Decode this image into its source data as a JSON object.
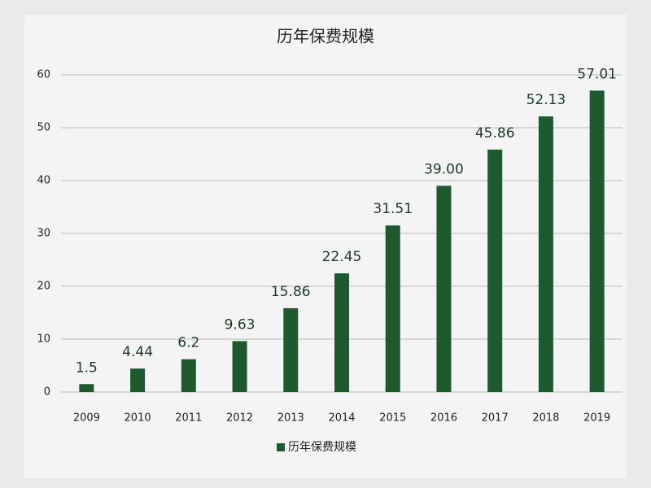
{
  "chart_data": {
    "type": "bar",
    "title": "历年保费规模",
    "categories": [
      "2009",
      "2010",
      "2011",
      "2012",
      "2013",
      "2014",
      "2015",
      "2016",
      "2017",
      "2018",
      "2019"
    ],
    "series": [
      {
        "name": "历年保费规模",
        "color": "#1d5a30",
        "values": [
          1.5,
          4.44,
          6.2,
          9.63,
          15.86,
          22.45,
          31.51,
          39.0,
          45.86,
          52.13,
          57.01
        ],
        "value_labels": [
          "1.5",
          "4.44",
          "6.2",
          "9.63",
          "15.86",
          "22.45",
          "31.51",
          "39.00",
          "45.86",
          "52.13",
          "57.01"
        ]
      }
    ],
    "ylim": [
      0,
      60
    ],
    "yticks": [
      0,
      10,
      20,
      30,
      40,
      50,
      60
    ],
    "grid": true
  }
}
